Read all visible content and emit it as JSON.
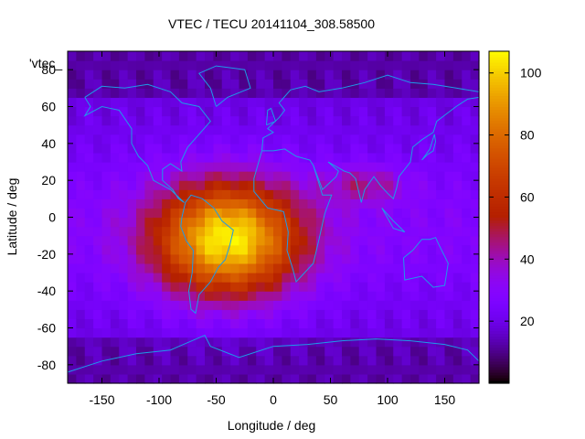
{
  "chart_data": {
    "type": "heatmap",
    "title": "VTEC / TECU 20141104_308.58500",
    "xlabel": "Longitude / deg",
    "ylabel": "Latitude / deg",
    "xlim": [
      -180,
      180
    ],
    "ylim": [
      -90,
      90
    ],
    "xticks": [
      -150,
      -100,
      -50,
      0,
      50,
      100,
      150
    ],
    "yticks": [
      -80,
      -60,
      -40,
      -20,
      0,
      20,
      40,
      60,
      80
    ],
    "colorbar": {
      "min": 0,
      "max": 107,
      "ticks": [
        20,
        40,
        60,
        80,
        100
      ]
    },
    "legend_label": "'vtec_",
    "peak": {
      "lon": -40,
      "lat": -15,
      "value": 100
    },
    "grid": false,
    "overlay": "coastlines",
    "coastline_color": "#1e9be8"
  }
}
